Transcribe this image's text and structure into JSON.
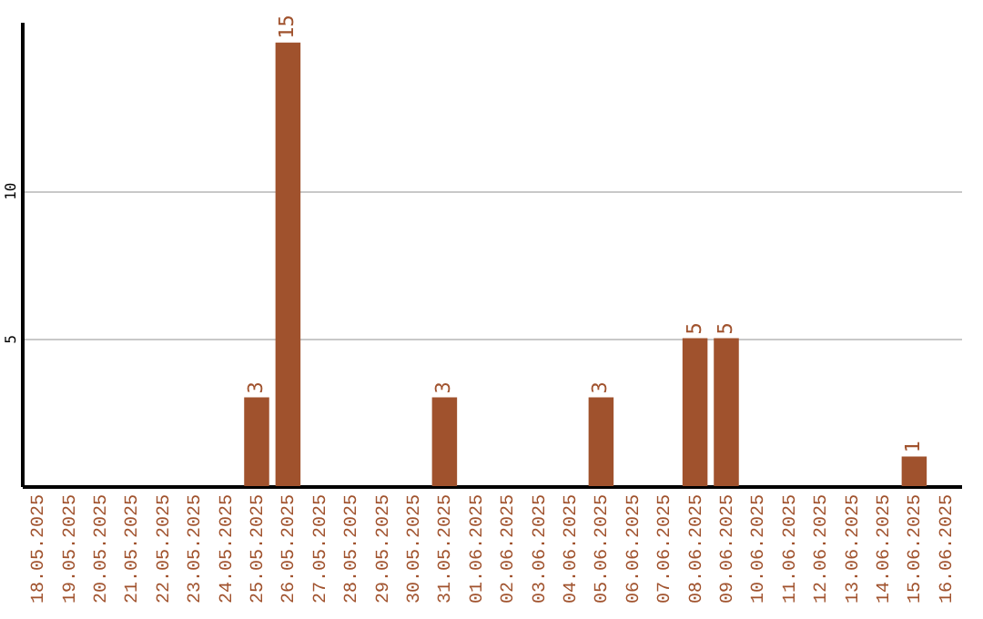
{
  "chart_data": {
    "type": "bar",
    "categories": [
      "18.05.2025",
      "19.05.2025",
      "20.05.2025",
      "21.05.2025",
      "22.05.2025",
      "23.05.2025",
      "24.05.2025",
      "25.05.2025",
      "26.05.2025",
      "27.05.2025",
      "28.05.2025",
      "29.05.2025",
      "30.05.2025",
      "31.05.2025",
      "01.06.2025",
      "02.06.2025",
      "03.06.2025",
      "04.06.2025",
      "05.06.2025",
      "06.06.2025",
      "07.06.2025",
      "08.06.2025",
      "09.06.2025",
      "10.06.2025",
      "11.06.2025",
      "12.06.2025",
      "13.06.2025",
      "14.06.2025",
      "15.06.2025",
      "16.06.2025"
    ],
    "values": [
      0,
      0,
      0,
      0,
      0,
      0,
      0,
      3,
      15,
      0,
      0,
      0,
      0,
      3,
      0,
      0,
      0,
      0,
      3,
      0,
      0,
      5,
      5,
      0,
      0,
      0,
      0,
      0,
      1,
      0
    ],
    "value_labels": [
      null,
      null,
      null,
      null,
      null,
      null,
      null,
      "3",
      "15",
      null,
      null,
      null,
      null,
      "3",
      null,
      null,
      null,
      null,
      "3",
      null,
      null,
      "5",
      "5",
      null,
      null,
      null,
      null,
      null,
      "1",
      null
    ],
    "color": "#a0522d",
    "ylim": [
      0,
      15.7
    ],
    "yticks": [
      5,
      10
    ],
    "grid": "y"
  }
}
